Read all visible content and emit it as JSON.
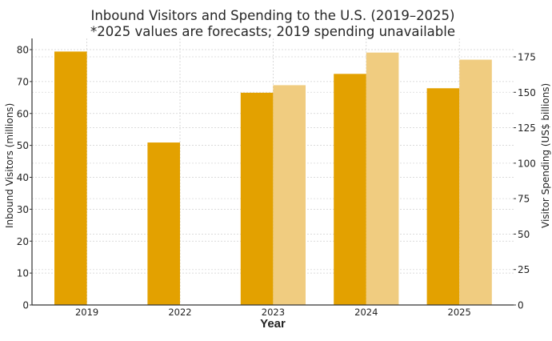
{
  "chart_data": {
    "type": "bar",
    "title": "Inbound Visitors and Spending to the U.S. (2019–2025)",
    "subtitle": "*2025 values are forecasts; 2019 spending unavailable",
    "xlabel": "Year",
    "ylabel": "Inbound Visitors (millions)",
    "ylabel_right": "Visitor Spending (US$ billions)",
    "categories": [
      "2019",
      "2022",
      "2023",
      "2024",
      "2025"
    ],
    "series": [
      {
        "name": "Inbound Visitors (millions)",
        "axis": "left",
        "color": "#E3A100",
        "values": [
          79.4,
          50.9,
          66.5,
          72.4,
          67.9
        ]
      },
      {
        "name": "Visitor Spending (US$ billions)",
        "axis": "right",
        "color": "#F0CC80",
        "values": [
          null,
          null,
          155,
          178,
          173
        ]
      }
    ],
    "ylim": [
      0,
      84
    ],
    "ylim_right": [
      0,
      188
    ],
    "yticks_left": [
      0,
      10,
      20,
      30,
      40,
      50,
      60,
      70,
      80
    ],
    "yticks_right": [
      0,
      25,
      50,
      75,
      100,
      125,
      150,
      175
    ],
    "grid": true,
    "legend": null
  },
  "labels": {
    "title_line1": "Inbound Visitors and Spending to the U.S. (2019–2025)",
    "title_line2": "*2025 values are forecasts; 2019 spending unavailable",
    "xlabel": "Year",
    "ylabel_left": "Inbound Visitors (millions)",
    "ylabel_right": "Visitor Spending (US$ billions)"
  }
}
